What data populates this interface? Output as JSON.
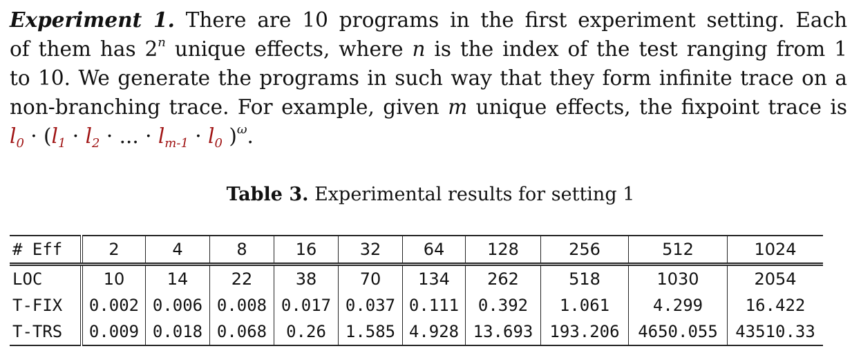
{
  "paragraph": {
    "lead": "Experiment 1.",
    "line1_rest": "There are 10 programs in the first experiment setting. Each",
    "line2_a": "of them has 2",
    "line2_sup": "n",
    "line2_b": " unique effects, where ",
    "line2_n": "n",
    "line2_c": " is the index of the test ranging from 1",
    "line3": "to 10. We generate the programs in such way that they form infinite trace on a",
    "line4_a": "non-branching trace. For example, given ",
    "line4_m": "m",
    "line4_b": " unique effects, the fixpoint trace is",
    "formula": {
      "l0a": "l",
      "s0a": "0",
      "dot1": " · (",
      "l1": "l",
      "s1": "1",
      "dot2": " · ",
      "l2": "l",
      "s2": "2",
      "dots": " · ... · ",
      "lm": "l",
      "sm": "m-1",
      "dot3": " · ",
      "l0b": "l",
      "s0b": "0",
      "close": " )",
      "omega": "ω",
      "end": "."
    }
  },
  "caption": {
    "label": "Table 3.",
    "text": " Experimental results for setting 1"
  },
  "table": {
    "header": [
      "# Eff",
      "2",
      "4",
      "8",
      "16",
      "32",
      "64",
      "128",
      "256",
      "512",
      "1024"
    ],
    "rows": [
      [
        "LOC",
        "10",
        "14",
        "22",
        "38",
        "70",
        "134",
        "262",
        "518",
        "1030",
        "2054"
      ],
      [
        "T-FIX",
        "0.002",
        "0.006",
        "0.008",
        "0.017",
        "0.037",
        "0.111",
        "0.392",
        "1.061",
        "4.299",
        "16.422"
      ],
      [
        "T-TRS",
        "0.009",
        "0.018",
        "0.068",
        "0.26",
        "1.585",
        "4.928",
        "13.693",
        "193.206",
        "4650.055",
        "43510.33"
      ]
    ]
  }
}
